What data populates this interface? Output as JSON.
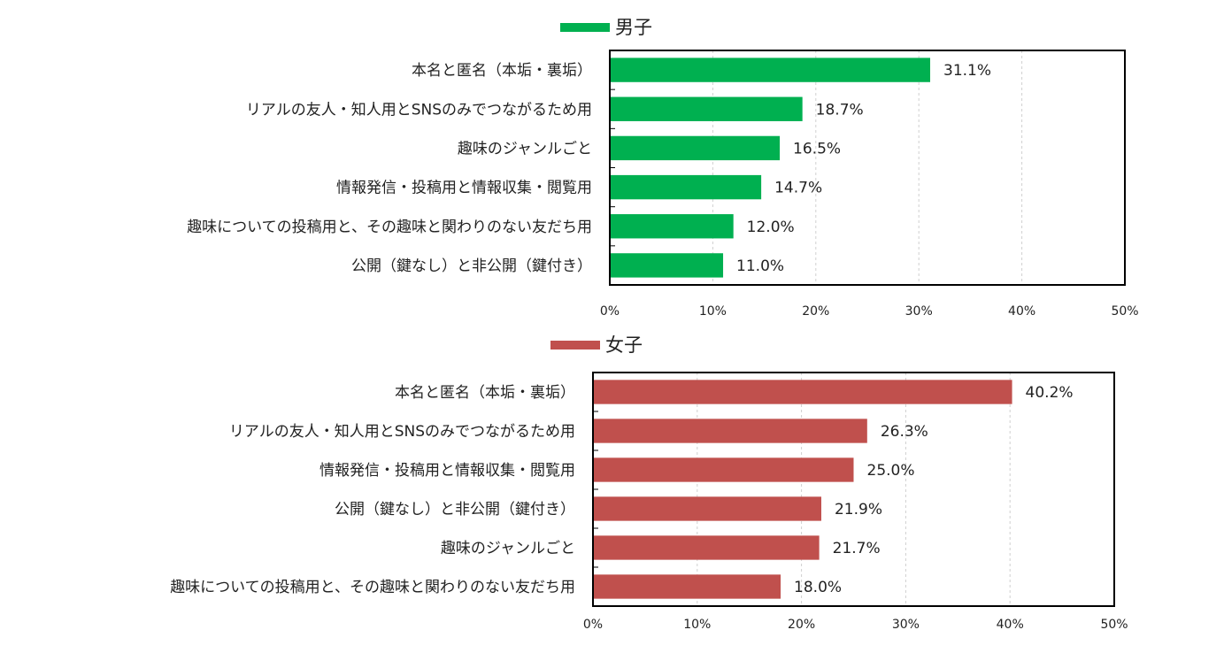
{
  "chart_data": [
    {
      "type": "bar",
      "orientation": "horizontal",
      "legend": "男子",
      "color": "#00b050",
      "categories": [
        "本名と匿名（本垢・裏垢）",
        "リアルの友人・知人用とSNSのみでつながるため用",
        "趣味のジャンルごと",
        "情報発信・投稿用と情報収集・閲覧用",
        "趣味についての投稿用と、その趣味と関わりのない友だち用",
        "公開（鍵なし）と非公開（鍵付き）"
      ],
      "values": [
        31.1,
        18.7,
        16.5,
        14.7,
        12.0,
        11.0
      ],
      "value_labels": [
        "31.1%",
        "18.7%",
        "16.5%",
        "14.7%",
        "12.0%",
        "11.0%"
      ],
      "xlim": [
        0,
        50
      ],
      "xticks": [
        "0%",
        "10%",
        "20%",
        "30%",
        "40%",
        "50%"
      ],
      "grid": true,
      "legend_position": "top"
    },
    {
      "type": "bar",
      "orientation": "horizontal",
      "legend": "女子",
      "color": "#c0504d",
      "categories": [
        "本名と匿名（本垢・裏垢）",
        "リアルの友人・知人用とSNSのみでつながるため用",
        "情報発信・投稿用と情報収集・閲覧用",
        "公開（鍵なし）と非公開（鍵付き）",
        "趣味のジャンルごと",
        "趣味についての投稿用と、その趣味と関わりのない友だち用"
      ],
      "values": [
        40.2,
        26.3,
        25.0,
        21.9,
        21.7,
        18.0
      ],
      "value_labels": [
        "40.2%",
        "26.3%",
        "25.0%",
        "21.9%",
        "21.7%",
        "18.0%"
      ],
      "xlim": [
        0,
        50
      ],
      "xticks": [
        "0%",
        "10%",
        "20%",
        "30%",
        "40%",
        "50%"
      ],
      "grid": true,
      "legend_position": "top"
    }
  ]
}
